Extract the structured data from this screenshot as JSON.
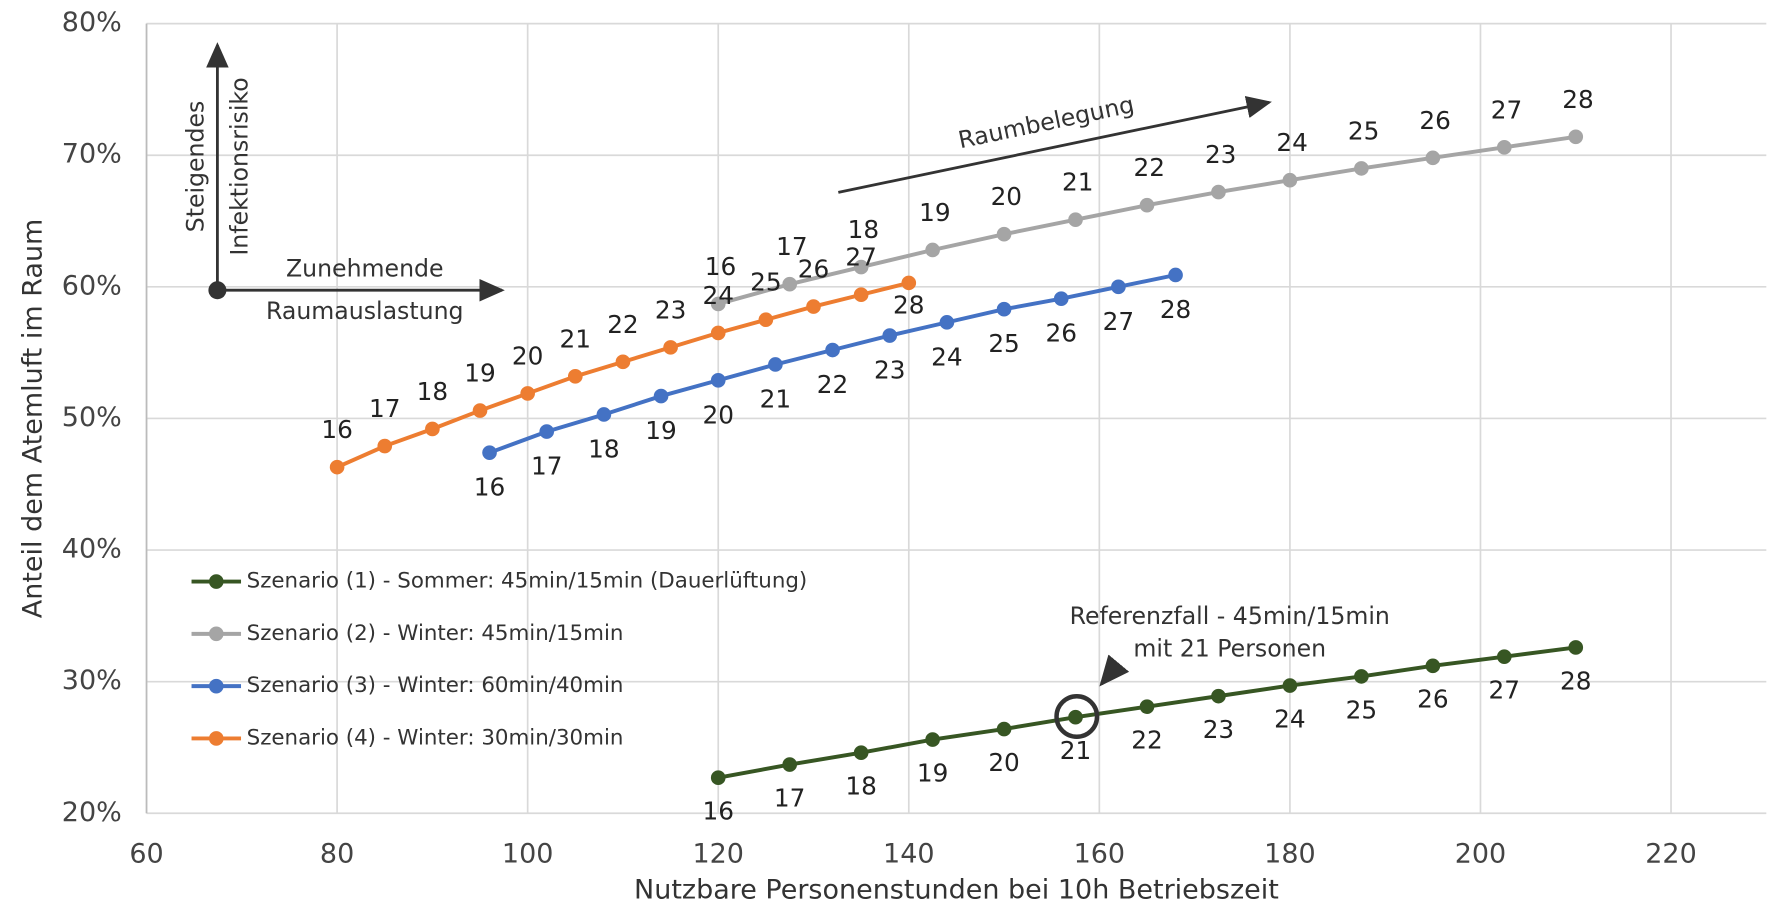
{
  "chart_data": {
    "type": "line",
    "x_label": "Nutzbare Personenstunden bei 10h Betriebszeit",
    "y_label": "Anteil dem Atemluft im Raum",
    "xlim": [
      60,
      230
    ],
    "xticks": [
      60,
      80,
      100,
      120,
      140,
      160,
      180,
      200,
      220
    ],
    "ylim": [
      20,
      80
    ],
    "yticks": [
      {
        "value": 20,
        "label": "20%"
      },
      {
        "value": 30,
        "label": "30%"
      },
      {
        "value": 40,
        "label": "40%"
      },
      {
        "value": 50,
        "label": "50%"
      },
      {
        "value": 60,
        "label": "60%"
      },
      {
        "value": 70,
        "label": "70%"
      },
      {
        "value": 80,
        "label": "80%"
      }
    ],
    "grid": true,
    "point_labels": [
      16,
      17,
      18,
      19,
      20,
      21,
      22,
      23,
      24,
      25,
      26,
      27,
      28
    ],
    "series": [
      {
        "name": "Szenario (1) - Sommer: 45min/15min (Dauerlüftung)",
        "color": "#375623",
        "x": [
          120,
          127.5,
          135,
          142.5,
          150,
          157.5,
          165,
          172.5,
          180,
          187.5,
          195,
          202.5,
          210
        ],
        "values": [
          22.7,
          23.7,
          24.6,
          25.6,
          26.4,
          27.3,
          28.1,
          28.9,
          29.7,
          30.4,
          31.2,
          31.9,
          32.6
        ]
      },
      {
        "name": "Szenario (2) - Winter: 45min/15min",
        "color": "#a5a5a5",
        "x": [
          120,
          127.5,
          135,
          142.5,
          150,
          157.5,
          165,
          172.5,
          180,
          187.5,
          195,
          202.5,
          210
        ],
        "values": [
          58.7,
          60.2,
          61.5,
          62.8,
          64.0,
          65.1,
          66.2,
          67.2,
          68.1,
          69.0,
          69.8,
          70.6,
          71.4
        ]
      },
      {
        "name": "Szenario (3) - Winter: 60min/40min",
        "color": "#4472c4",
        "x": [
          96,
          102,
          108,
          114,
          120,
          126,
          132,
          138,
          144,
          150,
          156,
          162,
          168
        ],
        "values": [
          47.4,
          49.0,
          50.3,
          51.7,
          52.9,
          54.1,
          55.2,
          56.3,
          57.3,
          58.3,
          59.1,
          60.0,
          60.9
        ]
      },
      {
        "name": "Szenario (4) - Winter: 30min/30min",
        "color": "#ed7d31",
        "x": [
          80,
          85,
          90,
          95,
          100,
          105,
          110,
          115,
          120,
          125,
          130,
          135,
          140
        ],
        "values": [
          46.3,
          47.9,
          49.2,
          50.6,
          51.9,
          53.2,
          54.3,
          55.4,
          56.5,
          57.5,
          58.5,
          59.4,
          60.3
        ]
      }
    ],
    "annotations": {
      "risk": [
        "Steigendes",
        "Infektionsrisiko"
      ],
      "load": [
        "Zunehmende",
        "Raumauslastung"
      ],
      "occupancy": "Raumbelegung",
      "reference": [
        "Referenzfall - 45min/15min",
        "mit 21 Personen"
      ]
    }
  }
}
